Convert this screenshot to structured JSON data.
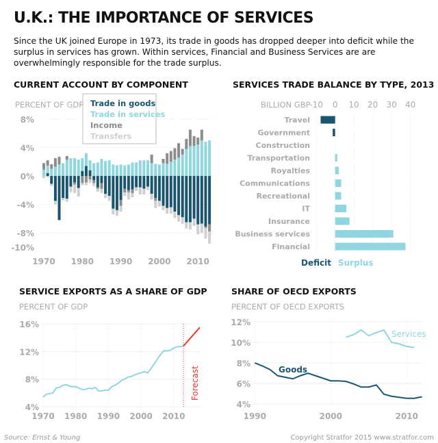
{
  "title": "U.K.: THE IMPORTANCE OF SERVICES",
  "intro": "Since the UK joined Europe in 1973, its trade in goods has dropped deeper into deficit while the surplus in services has grown. Within services, Financial and Business Services are are overwhelmingly responsible for the trade surplus.",
  "footer": {
    "source": "Source: Ernst & Young",
    "copyright": "Copyright Stratfor 2015  www.stratfor.com"
  },
  "colors": {
    "goods": "#1a5570",
    "services": "#8fd6e0",
    "income": "#8c8c8c",
    "transfers": "#d0d0d0",
    "forecast": "#e8382a"
  },
  "chart_data": [
    {
      "type": "bar",
      "stacked": true,
      "title": "CURRENT ACCOUNT BY COMPONENT",
      "ylabel": "PERCENT OF GDP",
      "ylim": [
        -10,
        8
      ],
      "yticks": [
        "8%",
        "4%",
        "0%",
        "-4%",
        "-8%",
        "-10%"
      ],
      "xticks": [
        "1970",
        "1980",
        "1990",
        "2000",
        "2010"
      ],
      "legend": [
        "Trade in goods",
        "Trade in services",
        "Income",
        "Transfers"
      ],
      "legend_position": "top",
      "x": [
        1970,
        1971,
        1972,
        1973,
        1974,
        1975,
        1976,
        1977,
        1978,
        1979,
        1980,
        1981,
        1982,
        1983,
        1984,
        1985,
        1986,
        1987,
        1988,
        1989,
        1990,
        1991,
        1992,
        1993,
        1994,
        1995,
        1996,
        1997,
        1998,
        1999,
        2000,
        2001,
        2002,
        2003,
        2004,
        2005,
        2006,
        2007,
        2008,
        2009,
        2010,
        2011,
        2012,
        2013
      ],
      "series": [
        {
          "name": "Trade in goods",
          "values": [
            0,
            0.4,
            -1.1,
            -3.5,
            -6.2,
            -3.1,
            -3.2,
            -1.5,
            -0.9,
            -1.7,
            0.7,
            1.4,
            0.8,
            -0.6,
            -1.6,
            -1.0,
            -2.5,
            -2.8,
            -4.6,
            -4.8,
            -3.4,
            -1.8,
            -2.0,
            -1.9,
            -1.6,
            -1.6,
            -1.8,
            -1.5,
            -2.5,
            -3.1,
            -3.5,
            -4.2,
            -4.5,
            -4.4,
            -5.0,
            -5.5,
            -5.8,
            -6.5,
            -6.5,
            -6.0,
            -6.8,
            -6.7,
            -7.1,
            -6.8
          ]
        },
        {
          "name": "Trade in services",
          "values": [
            0.9,
            1.05,
            1.0,
            1.3,
            1.6,
            1.8,
            2.3,
            2.5,
            2.5,
            2.3,
            1.8,
            1.8,
            1.4,
            1.8,
            1.9,
            2.4,
            2.1,
            2.2,
            1.6,
            1.5,
            1.6,
            1.5,
            1.6,
            1.9,
            1.9,
            2.2,
            2.2,
            2.2,
            1.8,
            1.7,
            1.6,
            1.8,
            1.7,
            2.0,
            2.3,
            2.6,
            3.0,
            3.8,
            4.2,
            4.2,
            4.4,
            5.0,
            4.8,
            5.0
          ]
        },
        {
          "name": "Income",
          "values": [
            0.9,
            0.75,
            0.65,
            1.2,
            1.1,
            0,
            0.5,
            0,
            -0.3,
            0,
            -1.0,
            -0.9,
            -0.5,
            -0.4,
            -0.2,
            -0.8,
            0,
            0,
            0,
            0,
            -0.8,
            -0.5,
            -0.3,
            -0.5,
            0,
            0,
            0,
            0,
            1.2,
            -0.4,
            0,
            0.6,
            1.5,
            1.5,
            1.6,
            2.0,
            0.8,
            1.4,
            2.3,
            1.4,
            1.0,
            1.5,
            -0.2,
            -1.0
          ]
        },
        {
          "name": "Transfers",
          "values": [
            -0.3,
            -0.2,
            -0.3,
            -0.5,
            0,
            -0.3,
            -0.4,
            -0.8,
            -1.2,
            -1.2,
            -0.3,
            -0.4,
            -0.5,
            -0.4,
            -0.4,
            -0.6,
            -0.6,
            -0.7,
            -0.8,
            -0.8,
            -0.8,
            -0.5,
            -1.0,
            -0.6,
            -0.5,
            -1.0,
            -0.8,
            -0.5,
            -0.8,
            -1.0,
            -0.8,
            -0.6,
            -0.8,
            -0.9,
            -0.9,
            -0.9,
            -0.9,
            -0.9,
            -1.0,
            -1.0,
            -1.4,
            -1.3,
            -1.5,
            -1.7
          ]
        }
      ]
    },
    {
      "type": "bar",
      "orientation": "horizontal",
      "title": "SERVICES TRADE BALANCE BY TYPE, 2013",
      "xlabel": "BILLION GBP",
      "xlim": [
        -10,
        40
      ],
      "xticks": [
        "-10",
        "0",
        "10",
        "20",
        "30",
        "40"
      ],
      "categories": [
        "Travel",
        "Government",
        "Construction",
        "Transportation",
        "Royalties",
        "Communications",
        "Recreational",
        "IT",
        "Insurance",
        "Business services",
        "Financial"
      ],
      "values": [
        -7.7,
        -1.3,
        0,
        1.1,
        2.0,
        3.2,
        3.2,
        6.0,
        7.6,
        30.9,
        37.4
      ],
      "legend": [
        "Deficit",
        "Surplus"
      ],
      "legend_position": "bottom"
    },
    {
      "type": "line",
      "title": "SERVICE EXPORTS AS A SHARE OF GDP",
      "ylabel": "PERCENT OF GDP",
      "ylim": [
        4,
        16
      ],
      "yticks": [
        "16%",
        "12%",
        "8%",
        "4%"
      ],
      "xticks": [
        "1970",
        "1980",
        "1990",
        "2000",
        "2010"
      ],
      "annotation": "Forecast",
      "series": [
        {
          "x": [
            1970,
            1971,
            1972,
            1973,
            1974,
            1975,
            1976,
            1977,
            1978,
            1979,
            1980,
            1981,
            1982,
            1983,
            1984,
            1985,
            1986,
            1987,
            1988,
            1989,
            1990,
            1991,
            1992,
            1993,
            1994,
            1995,
            1996,
            1997,
            1998,
            1999,
            2000,
            2001,
            2002,
            2003,
            2004,
            2005,
            2006,
            2007,
            2008,
            2009,
            2010,
            2011,
            2012,
            2013
          ],
          "values": [
            5.4,
            5.8,
            5.9,
            6.0,
            6.7,
            6.8,
            7.1,
            7.2,
            7.0,
            6.9,
            6.9,
            6.7,
            6.5,
            6.5,
            6.7,
            6.6,
            6.8,
            6.3,
            6.3,
            6.4,
            6.4,
            6.9,
            7.1,
            7.4,
            7.8,
            8.0,
            8.3,
            8.4,
            8.6,
            8.8,
            8.9,
            9.1,
            8.9,
            9.5,
            10.2,
            10.9,
            11.6,
            12.1,
            12.1,
            12.2,
            12.5,
            12.7,
            12.7,
            12.8
          ]
        },
        {
          "x": [
            2013,
            2018
          ],
          "values": [
            12.8,
            15.5
          ],
          "forecast": true
        }
      ]
    },
    {
      "type": "line",
      "title": "SHARE OF OECD EXPORTS",
      "ylabel": "PERCENT OF OECD EXPORTS",
      "ylim": [
        4,
        12
      ],
      "yticks": [
        "12%",
        "10%",
        "8%",
        "6%",
        "4%"
      ],
      "xticks": [
        "1990",
        "2000",
        "2010"
      ],
      "series": [
        {
          "name": "Goods",
          "x": [
            1990,
            1991,
            1992,
            1993,
            1994,
            1995,
            1996,
            1997,
            1998,
            1999,
            2000,
            2001,
            2002,
            2003,
            2004,
            2005,
            2006,
            2007,
            2008,
            2009,
            2010,
            2011,
            2012
          ],
          "values": [
            8.0,
            7.7,
            7.35,
            6.75,
            6.6,
            6.45,
            6.75,
            7.0,
            6.75,
            6.5,
            6.25,
            6.25,
            6.2,
            5.95,
            5.65,
            5.65,
            5.85,
            4.95,
            4.75,
            4.65,
            4.55,
            4.55,
            4.7
          ]
        },
        {
          "name": "Services",
          "x": [
            2002,
            2003,
            2004,
            2005,
            2006,
            2007,
            2008,
            2009,
            2010,
            2011
          ],
          "values": [
            10.5,
            10.75,
            11.2,
            10.65,
            10.95,
            11.2,
            10.0,
            9.85,
            9.6,
            9.5
          ]
        }
      ]
    }
  ]
}
